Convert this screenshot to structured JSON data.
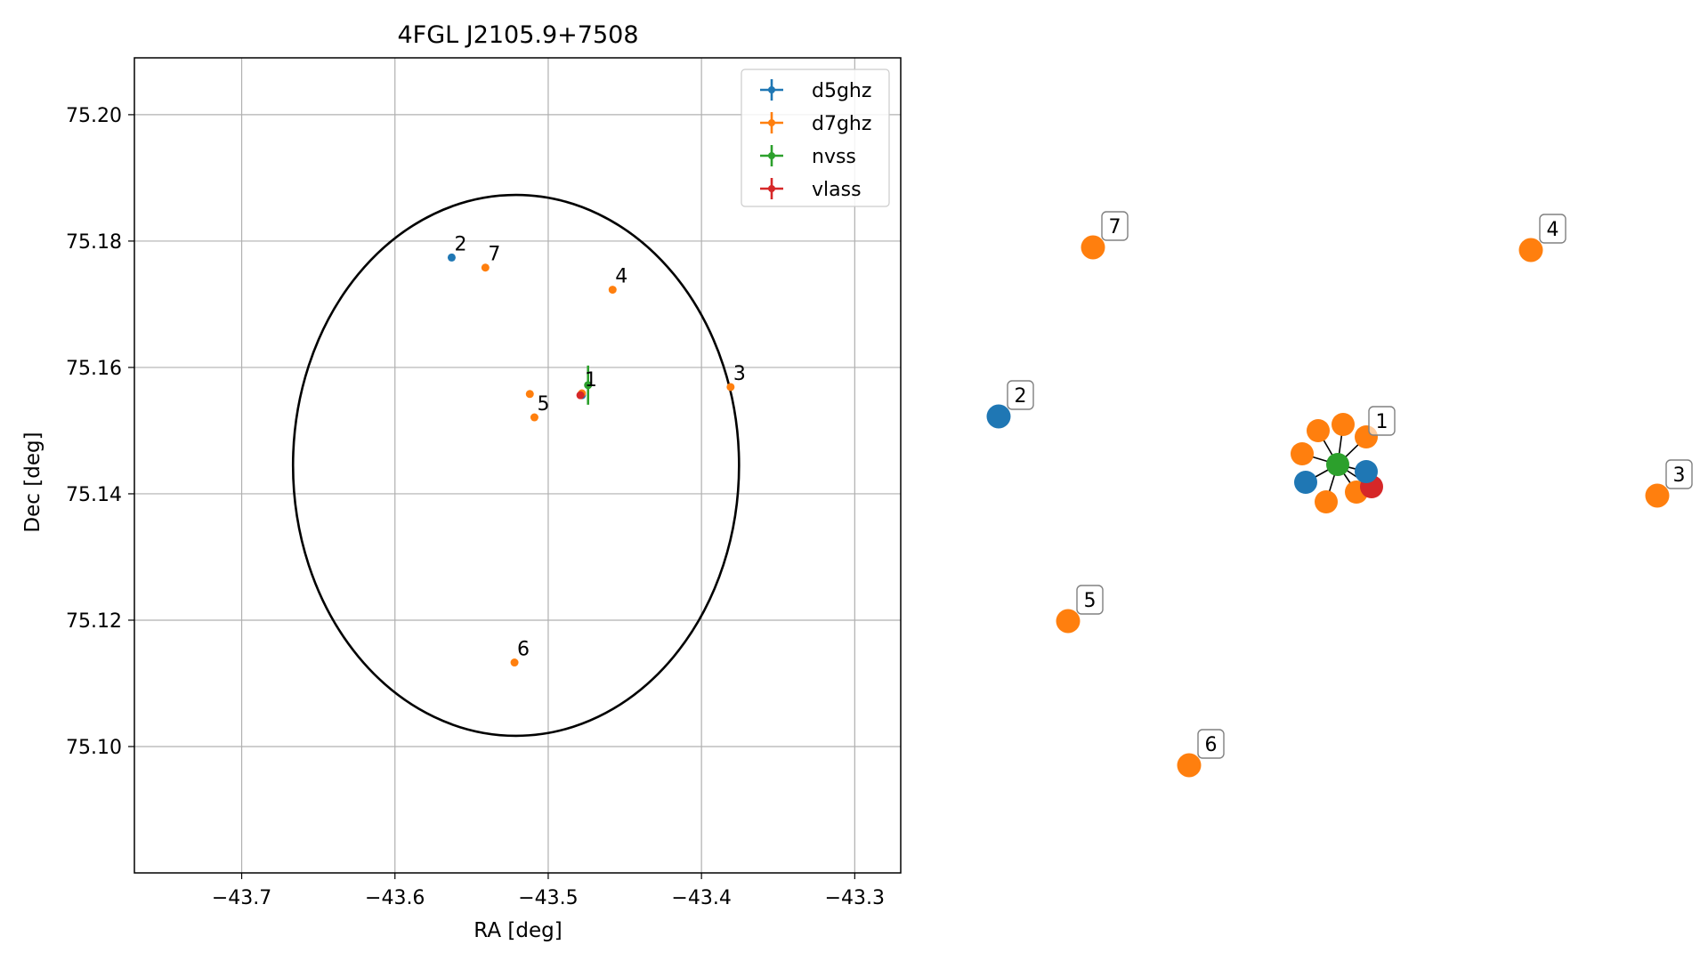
{
  "chart_data": [
    {
      "type": "scatter",
      "title": "4FGL J2105.9+7508",
      "xlabel": "RA [deg]",
      "ylabel": "Dec [deg]",
      "xlim": [
        -43.77,
        -43.27
      ],
      "ylim": [
        75.08,
        75.209
      ],
      "grid": true,
      "legend_position": "top-right",
      "x_ticks": [
        -43.7,
        -43.6,
        -43.5,
        -43.4,
        -43.3
      ],
      "x_tick_labels": [
        "−43.7",
        "−43.6",
        "−43.5",
        "−43.4",
        "−43.3"
      ],
      "y_ticks": [
        75.1,
        75.12,
        75.14,
        75.16,
        75.18,
        75.2
      ],
      "y_tick_labels": [
        "75.10",
        "75.12",
        "75.14",
        "75.16",
        "75.18",
        "75.20"
      ],
      "ellipse": {
        "center": [
          -43.521,
          75.1445
        ],
        "semi_axis_ra": 0.1455,
        "semi_axis_dec": 0.0428,
        "color": "#000000"
      },
      "series": [
        {
          "name": "d5ghz",
          "color": "#1f77b4",
          "points": [
            {
              "x": -43.563,
              "y": 75.1774,
              "label": "2"
            },
            {
              "x": -43.478,
              "y": 75.1556,
              "label": ""
            }
          ]
        },
        {
          "name": "d7ghz",
          "color": "#ff7f0e",
          "points": [
            {
              "x": -43.478,
              "y": 75.1559,
              "label": "1"
            },
            {
              "x": -43.381,
              "y": 75.1569,
              "label": "3"
            },
            {
              "x": -43.458,
              "y": 75.1723,
              "label": "4"
            },
            {
              "x": -43.509,
              "y": 75.1521,
              "label": "5"
            },
            {
              "x": -43.522,
              "y": 75.1133,
              "label": "6"
            },
            {
              "x": -43.541,
              "y": 75.1758,
              "label": "7"
            },
            {
              "x": -43.512,
              "y": 75.1558,
              "label": ""
            }
          ]
        },
        {
          "name": "nvss",
          "color": "#2ca02c",
          "points": [
            {
              "x": -43.474,
              "y": 75.1572,
              "label": "",
              "yerr": 0.0031
            }
          ]
        },
        {
          "name": "vlass",
          "color": "#d62728",
          "points": [
            {
              "x": -43.479,
              "y": 75.1556,
              "label": ""
            }
          ]
        }
      ]
    }
  ],
  "network": {
    "center_color": "#2ca02c",
    "nodes": [
      {
        "id": "d7-a",
        "color": "#ff7f0e"
      },
      {
        "id": "d7-b",
        "color": "#ff7f0e"
      },
      {
        "id": "d7-c",
        "color": "#ff7f0e"
      },
      {
        "id": "d7-d",
        "color": "#ff7f0e"
      },
      {
        "id": "d7-e",
        "color": "#ff7f0e"
      },
      {
        "id": "d7-f",
        "color": "#ff7f0e"
      },
      {
        "id": "vlass",
        "color": "#d62728"
      },
      {
        "id": "d5-a",
        "color": "#1f77b4"
      },
      {
        "id": "d5-b",
        "color": "#1f77b4"
      }
    ],
    "labeled_nodes": [
      {
        "label": "7",
        "color": "#ff7f0e"
      },
      {
        "label": "4",
        "color": "#ff7f0e"
      },
      {
        "label": "2",
        "color": "#1f77b4"
      },
      {
        "label": "1",
        "color": "#ff7f0e"
      },
      {
        "label": "3",
        "color": "#ff7f0e"
      },
      {
        "label": "5",
        "color": "#ff7f0e"
      },
      {
        "label": "6",
        "color": "#ff7f0e"
      }
    ]
  }
}
